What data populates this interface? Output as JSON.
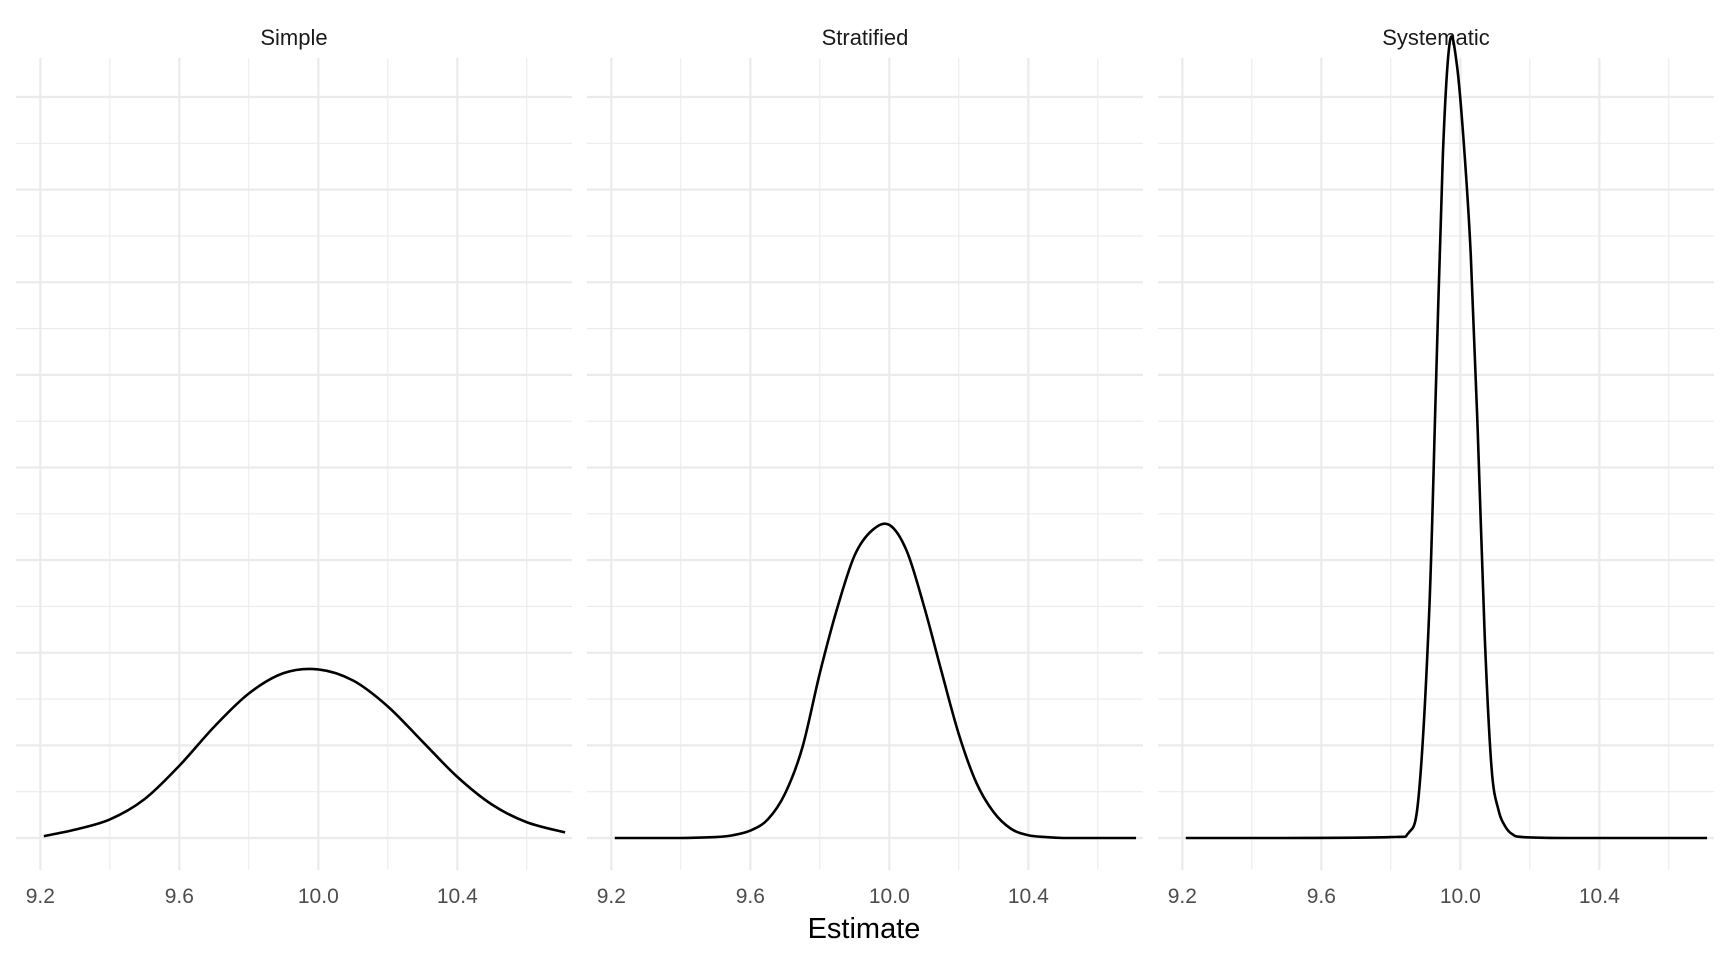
{
  "chart_data": {
    "type": "line",
    "xlabel": "Estimate",
    "ylabel": "",
    "xlim": [
      9.13,
      10.73
    ],
    "ylim": [
      0,
      8.6
    ],
    "x_ticks": [
      "9.2",
      "9.6",
      "10.0",
      "10.4"
    ],
    "x_tick_values": [
      9.2,
      9.6,
      10.0,
      10.4
    ],
    "grid": true,
    "panels": [
      {
        "strip": "Simple",
        "x": [
          9.21,
          9.3,
          9.4,
          9.5,
          9.6,
          9.7,
          9.8,
          9.9,
          10.0,
          10.1,
          10.2,
          10.3,
          10.4,
          10.5,
          10.6,
          10.71
        ],
        "y": [
          0.02,
          0.09,
          0.2,
          0.42,
          0.78,
          1.2,
          1.56,
          1.78,
          1.82,
          1.7,
          1.42,
          1.04,
          0.66,
          0.36,
          0.17,
          0.06
        ]
      },
      {
        "strip": "Stratified",
        "x": [
          9.21,
          9.3,
          9.4,
          9.5,
          9.55,
          9.6,
          9.65,
          9.7,
          9.75,
          9.8,
          9.85,
          9.9,
          9.95,
          10.0,
          10.05,
          10.1,
          10.15,
          10.2,
          10.25,
          10.3,
          10.35,
          10.4,
          10.45,
          10.5,
          10.6,
          10.71
        ],
        "y": [
          0,
          0,
          0,
          0.01,
          0.03,
          0.08,
          0.2,
          0.48,
          0.98,
          1.78,
          2.48,
          3.05,
          3.32,
          3.38,
          3.1,
          2.5,
          1.8,
          1.12,
          0.6,
          0.28,
          0.1,
          0.03,
          0.01,
          0,
          0,
          0
        ]
      },
      {
        "strip": "Systematic",
        "x": [
          9.21,
          9.5,
          9.8,
          9.85,
          9.88,
          9.91,
          9.93,
          9.95,
          9.97,
          9.99,
          10.01,
          10.03,
          10.05,
          10.07,
          10.09,
          10.11,
          10.13,
          10.15,
          10.18,
          10.3,
          10.5,
          10.71
        ],
        "y": [
          0,
          0,
          0.01,
          0.05,
          0.45,
          2.4,
          4.9,
          7.4,
          8.6,
          8.35,
          7.5,
          6.3,
          4.4,
          2.2,
          0.75,
          0.3,
          0.12,
          0.04,
          0.01,
          0,
          0,
          0
        ]
      }
    ]
  }
}
